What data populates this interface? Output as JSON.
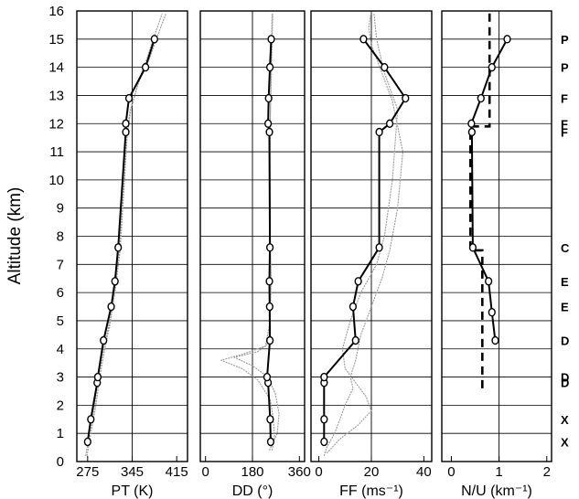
{
  "chart_data": {
    "type": "line",
    "ylabel": "Altitude (km)",
    "ylim": [
      0,
      16
    ],
    "y_ticks": [
      0,
      1,
      2,
      3,
      4,
      5,
      6,
      7,
      8,
      9,
      10,
      11,
      12,
      13,
      14,
      15,
      16
    ],
    "grid": true,
    "colors": {
      "profile": "#000000",
      "soundings": "#9a9a9a",
      "frame": "#000000"
    },
    "panels": [
      {
        "id": "pt",
        "xlabel": "PT (K)",
        "xlim": [
          258,
          432
        ],
        "x_ticks": [
          275,
          345,
          415
        ],
        "x_gridlines": [
          345
        ],
        "profile": {
          "x": [
            275,
            280,
            290,
            291,
            300,
            312,
            318,
            323,
            335,
            335,
            340,
            366,
            380
          ],
          "y": [
            0.7,
            1.5,
            2.8,
            3.0,
            4.3,
            5.5,
            6.4,
            7.6,
            11.7,
            12.0,
            12.9,
            14.0,
            15.0
          ]
        },
        "soundings": [
          {
            "x": [
              272,
              278,
              286,
              292,
              300,
              310,
              318,
              326,
              333,
              337,
              343,
              355,
              368,
              378,
              392
            ],
            "y": [
              0.2,
              1.0,
              2.0,
              3.0,
              4.0,
              5.0,
              6.0,
              7.5,
              10.0,
              11.5,
              12.5,
              13.5,
              14.3,
              15.0,
              15.9
            ]
          },
          {
            "x": [
              274,
              280,
              288,
              294,
              302,
              311,
              317,
              325,
              332,
              336,
              342,
              356,
              372,
              383,
              398
            ],
            "y": [
              0.2,
              1.0,
              2.0,
              3.0,
              4.0,
              5.0,
              6.0,
              7.5,
              10.0,
              11.5,
              12.5,
              13.5,
              14.3,
              15.0,
              15.9
            ]
          }
        ]
      },
      {
        "id": "dd",
        "xlabel": "DD (°)",
        "xlim": [
          -20,
          380
        ],
        "x_ticks": [
          0,
          180,
          360
        ],
        "x_gridlines": [
          180
        ],
        "profile": {
          "x": [
            250,
            248,
            240,
            236,
            247,
            246,
            245,
            247,
            245,
            240,
            242,
            247,
            252
          ],
          "y": [
            0.7,
            1.5,
            2.8,
            3.0,
            4.3,
            5.5,
            6.4,
            7.6,
            11.7,
            12.0,
            12.9,
            14.0,
            15.0
          ]
        },
        "soundings": [
          {
            "x": [
              255,
              265,
              260,
              248,
              200,
              140,
              60,
              140,
              230,
              248,
              252,
              246,
              248,
              250,
              255
            ],
            "y": [
              0.4,
              0.9,
              1.5,
              2.2,
              2.9,
              3.3,
              3.6,
              3.8,
              4.1,
              5.0,
              6.5,
              8.5,
              11.5,
              13.5,
              15.9
            ]
          },
          {
            "x": [
              245,
              275,
              282,
              268,
              240,
              180,
              110,
              200,
              242,
              246,
              250,
              248,
              246,
              252,
              258
            ],
            "y": [
              0.4,
              1.0,
              1.7,
              2.4,
              3.0,
              3.4,
              3.7,
              3.9,
              4.2,
              5.0,
              6.5,
              8.5,
              11.5,
              13.5,
              15.9
            ]
          }
        ]
      },
      {
        "id": "ff",
        "xlabel": "FF (ms⁻¹)",
        "xlim": [
          -3,
          43
        ],
        "x_ticks": [
          0,
          20,
          40
        ],
        "x_gridlines": [
          20
        ],
        "profile": {
          "x": [
            2,
            2,
            2,
            2,
            14,
            13,
            15,
            23,
            23,
            27,
            33,
            25,
            17
          ],
          "y": [
            0.7,
            1.5,
            2.8,
            3.0,
            4.3,
            5.5,
            6.4,
            7.6,
            11.7,
            12.0,
            12.9,
            14.0,
            15.0
          ]
        },
        "soundings": [
          {
            "x": [
              2,
              3,
              6,
              8,
              10,
              13,
              12,
              14,
              16,
              20,
              24,
              27,
              30,
              32,
              28,
              24,
              20,
              19,
              20
            ],
            "y": [
              0.2,
              0.5,
              1.0,
              1.5,
              2.0,
              2.6,
              3.0,
              3.6,
              4.5,
              5.5,
              6.5,
              7.5,
              9.0,
              11.0,
              12.8,
              13.8,
              14.8,
              15.4,
              16.0
            ]
          },
          {
            "x": [
              3,
              8,
              15,
              20,
              18,
              14,
              10,
              9,
              12,
              16,
              22,
              25,
              28,
              30,
              25,
              22,
              21
            ],
            "y": [
              0.3,
              0.8,
              1.3,
              1.8,
              2.3,
              2.8,
              3.3,
              4.0,
              5.0,
              6.0,
              7.0,
              8.0,
              10.0,
              12.5,
              13.8,
              15.0,
              15.9
            ]
          }
        ]
      },
      {
        "id": "nu",
        "xlabel": "N/U (km⁻¹)",
        "xlim": [
          -0.2,
          2.1
        ],
        "x_ticks": [
          0,
          1,
          2
        ],
        "x_gridlines": [
          1
        ],
        "profile": {
          "x": [
            0.92,
            0.85,
            0.78,
            0.45,
            0.43,
            0.42,
            0.62,
            0.85,
            1.17
          ],
          "y": [
            4.3,
            5.3,
            6.4,
            7.6,
            11.7,
            12.0,
            12.9,
            14.0,
            15.0
          ]
        },
        "dashed": {
          "x": [
            0.65,
            0.65,
            0.4,
            0.4,
            0.8,
            0.8
          ],
          "y": [
            2.6,
            7.5,
            7.5,
            11.9,
            11.9,
            16.0
          ]
        }
      }
    ],
    "layer_labels": [
      {
        "text": "P",
        "y": 15.0
      },
      {
        "text": "P",
        "y": 14.0
      },
      {
        "text": "F",
        "y": 12.9
      },
      {
        "text": "F",
        "y": 12.0
      },
      {
        "text": "F",
        "y": 11.7
      },
      {
        "text": "C",
        "y": 7.6
      },
      {
        "text": "E",
        "y": 6.4
      },
      {
        "text": "E",
        "y": 5.5
      },
      {
        "text": "D",
        "y": 4.3
      },
      {
        "text": "D",
        "y": 3.0
      },
      {
        "text": "D",
        "y": 2.8
      },
      {
        "text": "X",
        "y": 1.5
      },
      {
        "text": "X",
        "y": 0.7
      }
    ]
  }
}
